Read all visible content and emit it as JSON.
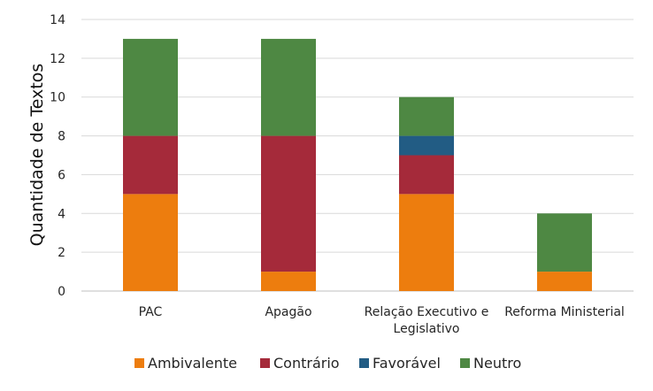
{
  "chart_data": {
    "type": "bar",
    "stacked": true,
    "title": "",
    "xlabel": "",
    "ylabel": "Quantidade de Textos",
    "ylim": [
      0,
      14
    ],
    "yticks": [
      0,
      2,
      4,
      6,
      8,
      10,
      12,
      14
    ],
    "grid": true,
    "legend_position": "bottom",
    "categories": [
      [
        "PAC"
      ],
      [
        "Apagão"
      ],
      [
        "Relação Executivo e",
        "Legislativo"
      ],
      [
        "Reforma Ministerial"
      ]
    ],
    "series": [
      {
        "name": "Ambivalente",
        "color": "#ED7D0E",
        "values": [
          5,
          1,
          5,
          1
        ]
      },
      {
        "name": "Contrário",
        "color": "#A52A3A",
        "values": [
          3,
          7,
          2,
          0
        ]
      },
      {
        "name": "Favorável",
        "color": "#225C84",
        "values": [
          0,
          0,
          1,
          0
        ]
      },
      {
        "name": "Neutro",
        "color": "#4E8843",
        "values": [
          5,
          5,
          2,
          3
        ]
      }
    ]
  }
}
